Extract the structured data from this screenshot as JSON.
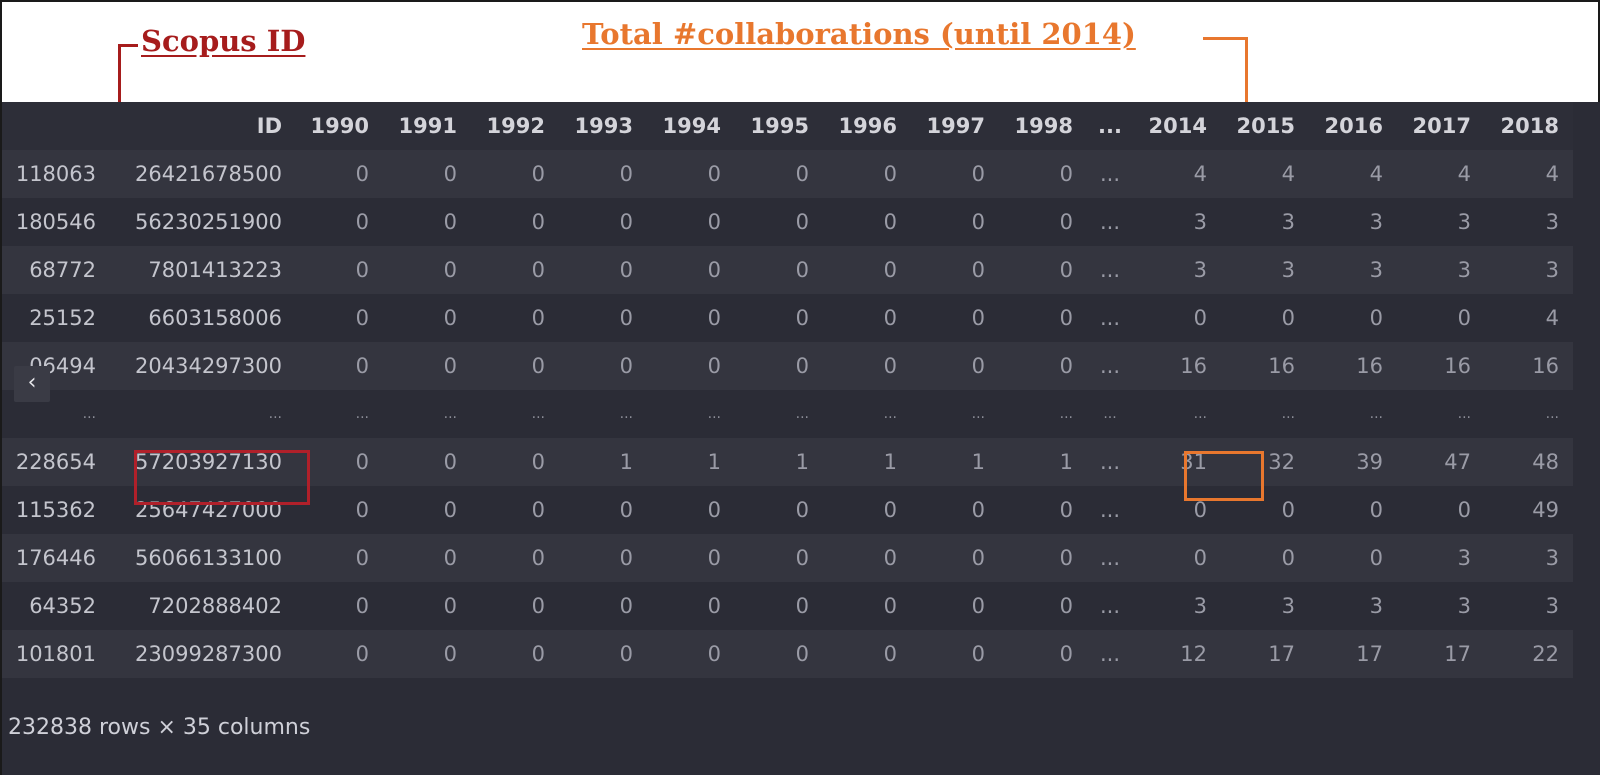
{
  "annotations": {
    "scopus_label": "Scopus ID",
    "collab_label": "Total #collaborations (until 2014)",
    "red_color": "#a61c1c",
    "orange_color": "#e8772e"
  },
  "table": {
    "columns": [
      "",
      "ID",
      "1990",
      "1991",
      "1992",
      "1993",
      "1994",
      "1995",
      "1996",
      "1997",
      "1998",
      "...",
      "2014",
      "2015",
      "2016",
      "2017",
      "2018"
    ],
    "rows": [
      [
        "118063",
        "26421678500",
        "0",
        "0",
        "0",
        "0",
        "0",
        "0",
        "0",
        "0",
        "0",
        "...",
        "4",
        "4",
        "4",
        "4",
        "4"
      ],
      [
        "180546",
        "56230251900",
        "0",
        "0",
        "0",
        "0",
        "0",
        "0",
        "0",
        "0",
        "0",
        "...",
        "3",
        "3",
        "3",
        "3",
        "3"
      ],
      [
        "68772",
        "7801413223",
        "0",
        "0",
        "0",
        "0",
        "0",
        "0",
        "0",
        "0",
        "0",
        "...",
        "3",
        "3",
        "3",
        "3",
        "3"
      ],
      [
        "25152",
        "6603158006",
        "0",
        "0",
        "0",
        "0",
        "0",
        "0",
        "0",
        "0",
        "0",
        "...",
        "0",
        "0",
        "0",
        "0",
        "4"
      ],
      [
        "06494",
        "20434297300",
        "0",
        "0",
        "0",
        "0",
        "0",
        "0",
        "0",
        "0",
        "0",
        "...",
        "16",
        "16",
        "16",
        "16",
        "16"
      ],
      [
        "...",
        "...",
        "...",
        "...",
        "...",
        "...",
        "...",
        "...",
        "...",
        "...",
        "...",
        "...",
        "...",
        "...",
        "...",
        "...",
        "..."
      ],
      [
        "228654",
        "57203927130",
        "0",
        "0",
        "0",
        "1",
        "1",
        "1",
        "1",
        "1",
        "1",
        "...",
        "31",
        "32",
        "39",
        "47",
        "48"
      ],
      [
        "115362",
        "25647427000",
        "0",
        "0",
        "0",
        "0",
        "0",
        "0",
        "0",
        "0",
        "0",
        "...",
        "0",
        "0",
        "0",
        "0",
        "49"
      ],
      [
        "176446",
        "56066133100",
        "0",
        "0",
        "0",
        "0",
        "0",
        "0",
        "0",
        "0",
        "0",
        "...",
        "0",
        "0",
        "0",
        "3",
        "3"
      ],
      [
        "64352",
        "7202888402",
        "0",
        "0",
        "0",
        "0",
        "0",
        "0",
        "0",
        "0",
        "0",
        "...",
        "3",
        "3",
        "3",
        "3",
        "3"
      ],
      [
        "101801",
        "23099287300",
        "0",
        "0",
        "0",
        "0",
        "0",
        "0",
        "0",
        "0",
        "0",
        "...",
        "12",
        "17",
        "17",
        "17",
        "22"
      ]
    ],
    "footer": "232838 rows × 35 columns"
  },
  "nav": {
    "prev_icon": "chevron-left-icon",
    "prev_glyph": "‹"
  }
}
